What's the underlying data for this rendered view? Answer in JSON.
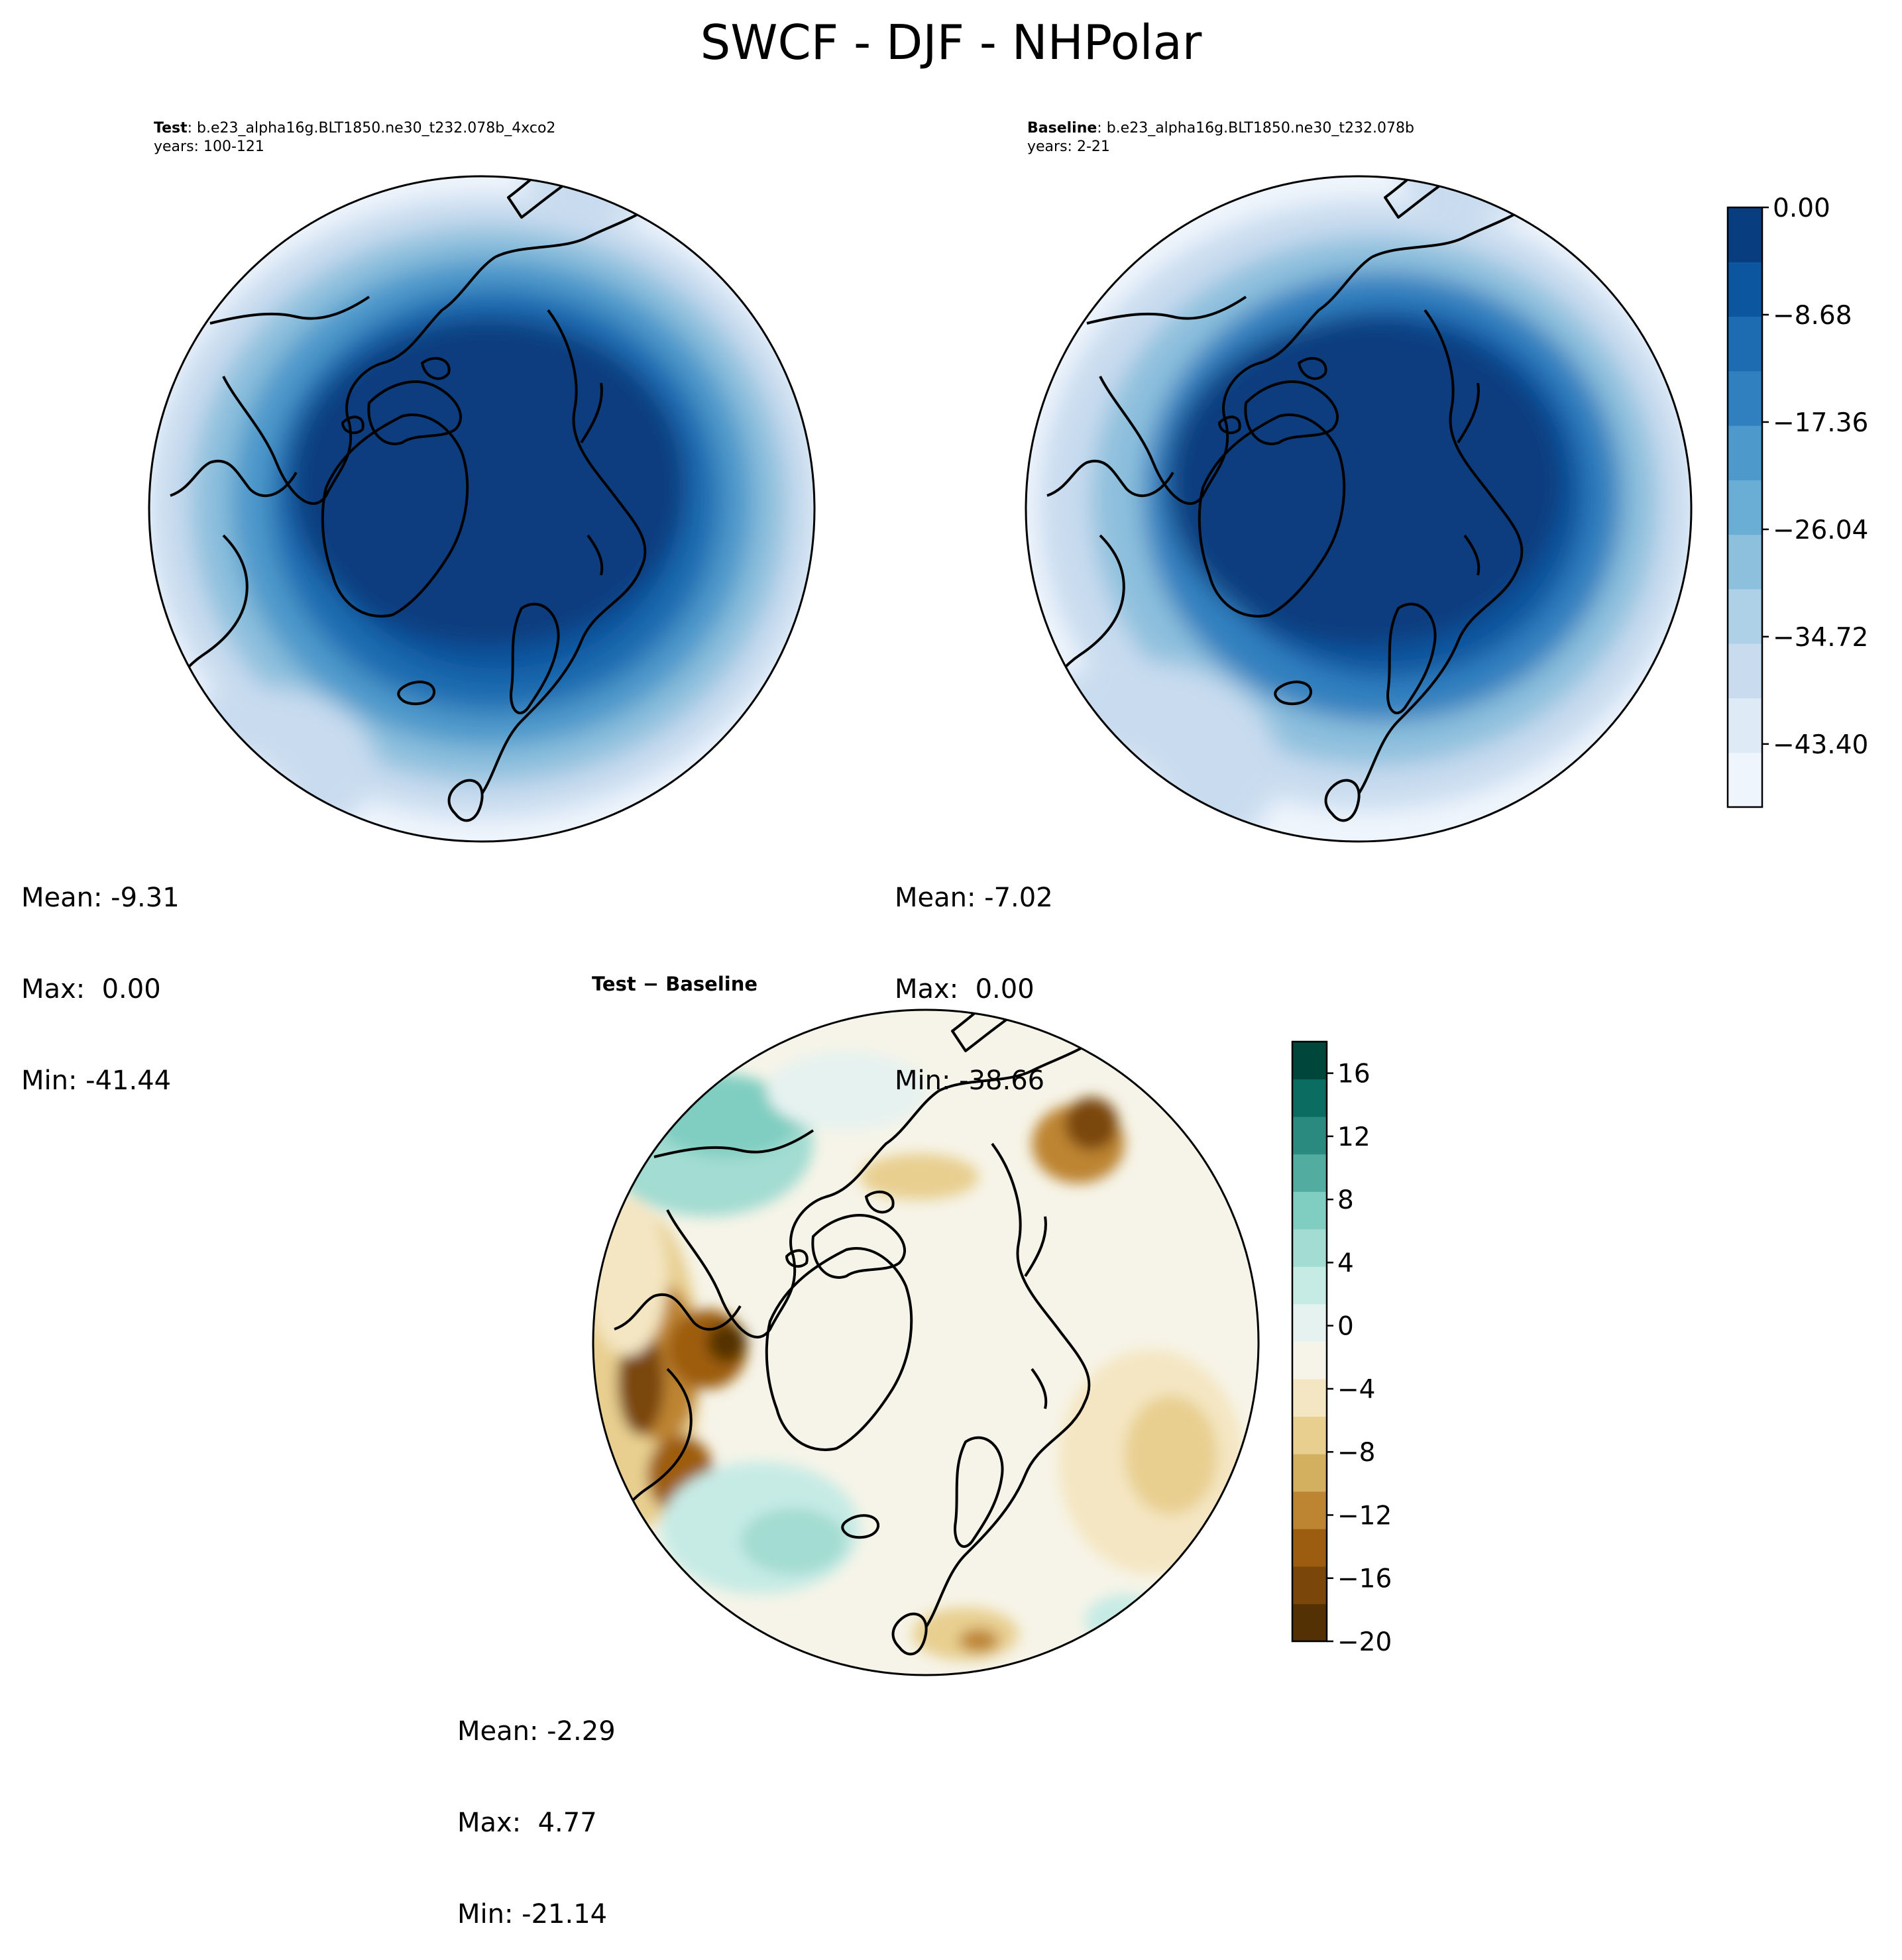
{
  "title": "SWCF - DJF - NHPolar",
  "test_panel": {
    "label_bold": "Test",
    "label_rest": ": b.e23_alpha16g.BLT1850.ne30_t232.078b_4xco2",
    "years": "years: 100-121",
    "stats": {
      "mean": "Mean: -9.31",
      "max": "Max:  0.00",
      "min": "Min: -41.44"
    }
  },
  "baseline_panel": {
    "label_bold": "Baseline",
    "label_rest": ": b.e23_alpha16g.BLT1850.ne30_t232.078b",
    "years": "years: 2-21",
    "stats": {
      "mean": "Mean: -7.02",
      "max": "Max:  0.00",
      "min": "Min: -38.66"
    }
  },
  "diff_panel": {
    "label": "Test − Baseline",
    "stats": {
      "mean": "Mean: -2.29",
      "max": "Max:  4.77",
      "min": "Min: -21.14"
    }
  },
  "colorbar_main": {
    "ticks": [
      "0.00",
      "−8.68",
      "−17.36",
      "−26.04",
      "−34.72",
      "−43.40"
    ],
    "colors": [
      "#eff5fc",
      "#deebf7",
      "#c9dcef",
      "#afd1e7",
      "#8dc0dd",
      "#6aaed6",
      "#4d99cb",
      "#3080bf",
      "#1d6cb1",
      "#0c56a0",
      "#083d7f"
    ]
  },
  "colorbar_diff": {
    "ticks": [
      "16",
      "12",
      "8",
      "4",
      "0",
      "−4",
      "−8",
      "−12",
      "−16",
      "−20"
    ],
    "colors": [
      "#543005",
      "#7a460a",
      "#9d5d11",
      "#bd8432",
      "#d3b060",
      "#e8cf90",
      "#f4e6c2",
      "#f6f4e8",
      "#e6f2f0",
      "#c6ebe5",
      "#a3dcd2",
      "#80cdc1",
      "#52ac9f",
      "#2a8a80",
      "#0b6c61",
      "#01463b"
    ]
  },
  "map_colors": {
    "coast": "#000000",
    "test_bands": [
      "#eff5fc",
      "#c9dcef",
      "#8dc0dd",
      "#4d99cb",
      "#1d6cb1",
      "#0c56a0",
      "#083d7f"
    ],
    "baseline_bands": [
      "#eff5fc",
      "#c9dcef",
      "#8dc0dd",
      "#3080bf",
      "#0c56a0",
      "#083d7f"
    ],
    "diff_base": "#f6f4e8"
  }
}
